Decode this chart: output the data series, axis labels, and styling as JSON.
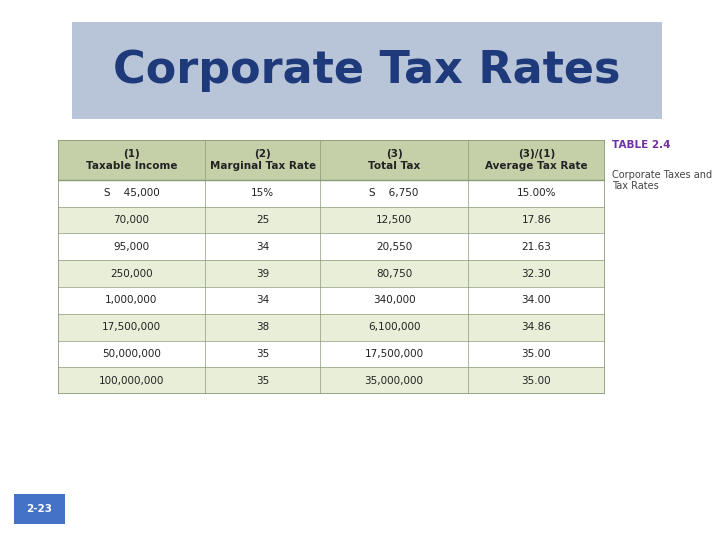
{
  "title": "Corporate Tax Rates",
  "title_color": "#1F3A7A",
  "title_bg_color": "#B8C4D8",
  "page_bg_color": "#FFFFFF",
  "table_label": "TABLE 2.4",
  "table_label_color": "#7030A0",
  "table_desc": "Corporate Taxes and\nTax Rates",
  "col_headers": [
    "(1)\nTaxable Income",
    "(2)\nMarginal Tax Rate",
    "(3)\nTotal Tax",
    "(3)/(1)\nAverage Tax Rate"
  ],
  "rows": [
    [
      "S    45,000",
      "15%",
      "S    6,750",
      "15.00%"
    ],
    [
      "70,000",
      "25",
      "12,500",
      "17.86"
    ],
    [
      "95,000",
      "34",
      "20,550",
      "21.63"
    ],
    [
      "250,000",
      "39",
      "80,750",
      "32.30"
    ],
    [
      "1,000,000",
      "34",
      "340,000",
      "34.00"
    ],
    [
      "17,500,000",
      "38",
      "6,100,000",
      "34.86"
    ],
    [
      "50,000,000",
      "35",
      "17,500,000",
      "35.00"
    ],
    [
      "100,000,000",
      "35",
      "35,000,000",
      "35.00"
    ]
  ],
  "row_colors_alt": [
    "#FFFFFF",
    "#E8EED8"
  ],
  "header_bg": "#C5D0A8",
  "table_border_color": "#8A9A78",
  "page_number": "2-23",
  "page_num_bg": "#4472C4",
  "page_num_color": "#FFFFFF",
  "outer_border_color": "#AAAAAA",
  "title_font_size": 32,
  "cell_font_size": 7.5,
  "header_font_size": 7.5
}
